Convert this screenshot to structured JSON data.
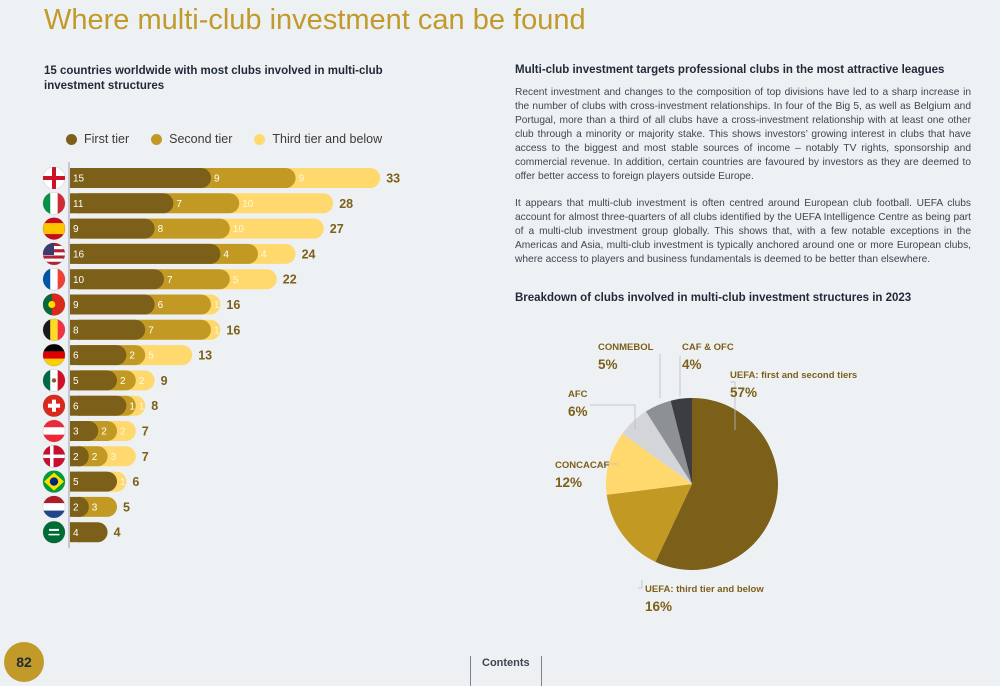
{
  "page": {
    "title": "Where multi-club investment can be found",
    "number": "82",
    "contents_label": "Contents"
  },
  "left": {
    "subtitle": "15 countries worldwide with most clubs involved in multi-club investment structures"
  },
  "right": {
    "heading": "Multi-club investment targets professional clubs in the most attractive leagues",
    "paragraph1": "Recent investment and changes to the composition of top divisions have led to a sharp increase in the number of clubs with cross-investment relationships. In four of the Big 5, as well as Belgium and Portugal, more than a third of all clubs have a cross-investment relationship with at least one other club through a minority or majority stake. This shows investors’ growing interest in clubs that have access to the biggest and most stable sources of income – notably TV rights, sponsorship and commercial revenue. In addition, certain countries are favoured by investors as they are deemed to offer better access to foreign players outside Europe.",
    "paragraph2": "It appears that multi-club investment is often centred around European club football. UEFA clubs account for almost three-quarters of all clubs identified by the UEFA Intelligence Centre as being part of a multi-club investment group globally. This shows that, with a few notable exceptions in the Americas and Asia, multi-club investment is typically anchored around one or more European clubs, where access to players and business fundamentals is deemed to be better than elsewhere.",
    "pie_heading": "Breakdown of clubs involved in multi-club investment structures in 2023"
  },
  "chart_data": [
    {
      "type": "bar",
      "orientation": "horizontal",
      "stacked": true,
      "legend": [
        "First tier",
        "Second tier",
        "Third tier and below"
      ],
      "legend_position": "top",
      "colors": [
        "#7c5f19",
        "#c29a23",
        "#ffd96e"
      ],
      "categories": [
        "England",
        "Italy",
        "Spain",
        "United States",
        "France",
        "Portugal",
        "Belgium",
        "Germany",
        "Mexico",
        "Switzerland",
        "Austria",
        "Denmark",
        "Brazil",
        "Netherlands",
        "Saudi Arabia"
      ],
      "series": [
        {
          "name": "First tier",
          "values": [
            15,
            11,
            9,
            16,
            10,
            9,
            8,
            6,
            5,
            6,
            3,
            2,
            5,
            2,
            4
          ]
        },
        {
          "name": "Second tier",
          "values": [
            9,
            7,
            8,
            4,
            7,
            6,
            7,
            2,
            2,
            1,
            2,
            2,
            0,
            3,
            0
          ]
        },
        {
          "name": "Third tier and below",
          "values": [
            9,
            10,
            10,
            4,
            5,
            1,
            1,
            5,
            2,
            1,
            2,
            3,
            1,
            0,
            0
          ]
        }
      ],
      "totals": [
        33,
        28,
        27,
        24,
        22,
        16,
        16,
        13,
        9,
        8,
        7,
        7,
        6,
        5,
        4
      ]
    },
    {
      "type": "pie",
      "slices": [
        {
          "label": "UEFA: first and second tiers",
          "value": 57,
          "display": "57%",
          "color": "#7c5f19"
        },
        {
          "label": "UEFA: third tier and below",
          "value": 16,
          "display": "16%",
          "color": "#c29a23"
        },
        {
          "label": "CONCACAF",
          "value": 12,
          "display": "12%",
          "color": "#ffd96e"
        },
        {
          "label": "AFC",
          "value": 6,
          "display": "6%",
          "color": "#d3d5d8"
        },
        {
          "label": "CONMEBOL",
          "value": 5,
          "display": "5%",
          "color": "#8e9194"
        },
        {
          "label": "CAF & OFC",
          "value": 4,
          "display": "4%",
          "color": "#3b3d40"
        }
      ]
    }
  ]
}
